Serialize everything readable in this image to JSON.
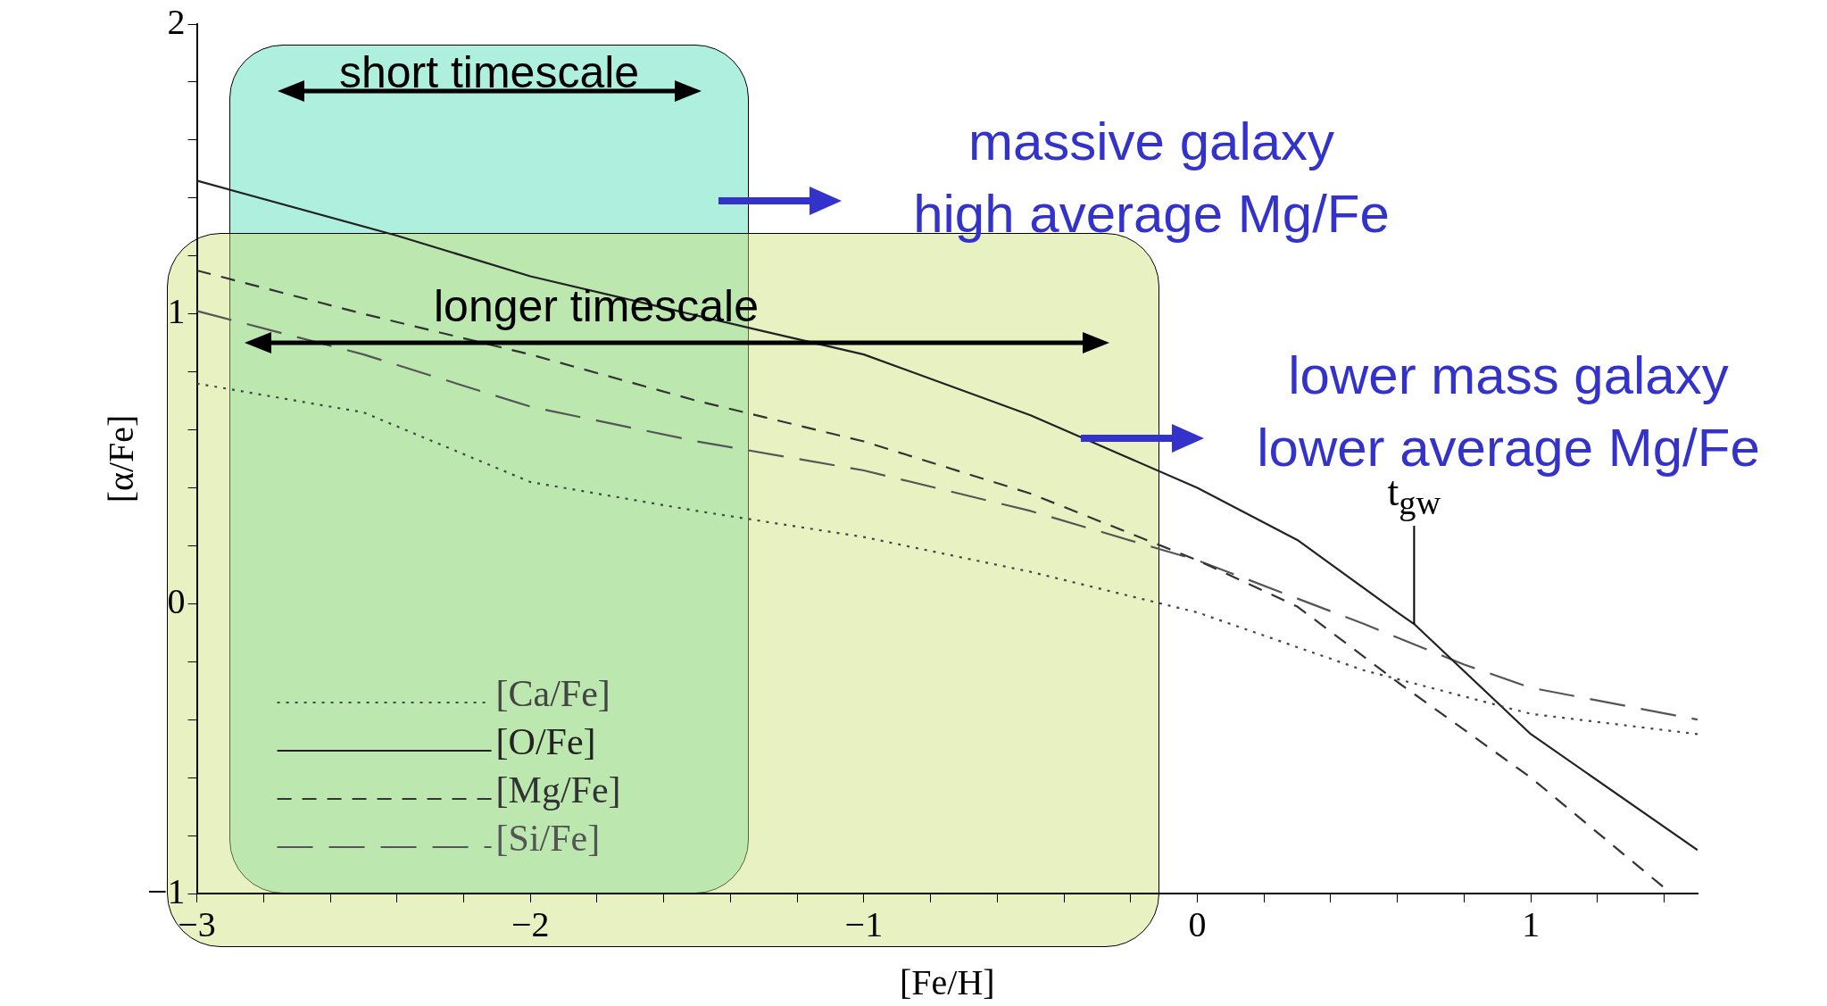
{
  "chart_data": {
    "type": "line",
    "xlabel": "[Fe/H]",
    "ylabel": "[α/Fe]",
    "xlim": [
      -3,
      1.5
    ],
    "ylim": [
      -1,
      2
    ],
    "xticks": [
      -3,
      {
        "value": -2.8,
        "label": null
      },
      {
        "value": -2.6,
        "label": null
      },
      {
        "value": -2.4,
        "label": null
      },
      {
        "value": -2.2,
        "label": null
      },
      -2,
      {
        "value": -1.8,
        "label": null
      },
      {
        "value": -1.6,
        "label": null
      },
      {
        "value": -1.4,
        "label": null
      },
      {
        "value": -1.2,
        "label": null
      },
      -1,
      {
        "value": -0.8,
        "label": null
      },
      {
        "value": -0.6,
        "label": null
      },
      {
        "value": -0.4,
        "label": null
      },
      {
        "value": -0.2,
        "label": null
      },
      0,
      {
        "value": 0.2,
        "label": null
      },
      {
        "value": 0.4,
        "label": null
      },
      {
        "value": 0.6,
        "label": null
      },
      {
        "value": 0.8,
        "label": null
      },
      1,
      {
        "value": 1.2,
        "label": null
      },
      {
        "value": 1.4,
        "label": null
      }
    ],
    "yticks": [
      -1,
      {
        "value": -0.8,
        "label": null
      },
      {
        "value": -0.6,
        "label": null
      },
      {
        "value": -0.4,
        "label": null
      },
      {
        "value": -0.2,
        "label": null
      },
      0,
      {
        "value": 0.2,
        "label": null
      },
      {
        "value": 0.4,
        "label": null
      },
      {
        "value": 0.6,
        "label": null
      },
      {
        "value": 0.8,
        "label": null
      },
      1,
      {
        "value": 1.2,
        "label": null
      },
      {
        "value": 1.4,
        "label": null
      },
      {
        "value": 1.6,
        "label": null
      },
      {
        "value": 1.8,
        "label": null
      },
      2
    ],
    "grid": false,
    "legend": "bottom left",
    "marker": "none",
    "series": [
      {
        "name": "[Ca/Fe]",
        "color": "#444444",
        "line_style": "dotted",
        "x": [
          -3,
          -2.5,
          -2,
          -1.5,
          -1,
          -0.5,
          0,
          0.5,
          1,
          1.5
        ],
        "values": [
          0.76,
          0.66,
          0.42,
          0.32,
          0.23,
          0.11,
          -0.03,
          -0.23,
          -0.38,
          -0.45
        ]
      },
      {
        "name": "[O/Fe]",
        "color": "#222222",
        "line_style": "solid",
        "x": [
          -3,
          -2.4,
          -2,
          -1.3,
          -1,
          -0.5,
          0,
          0.3,
          0.6,
          0.65,
          1,
          1.5
        ],
        "values": [
          1.46,
          1.27,
          1.13,
          0.94,
          0.86,
          0.65,
          0.4,
          0.22,
          -0.03,
          -0.07,
          -0.45,
          -0.85
        ]
      },
      {
        "name": "[Mg/Fe]",
        "color": "#333333",
        "line_style": "dashed",
        "x": [
          -3,
          -2.5,
          -2,
          -1.5,
          -1,
          -0.5,
          0,
          0.3,
          0.6,
          1,
          1.4
        ],
        "values": [
          1.15,
          1.0,
          0.86,
          0.7,
          0.56,
          0.38,
          0.15,
          -0.01,
          -0.27,
          -0.6,
          -0.98
        ]
      },
      {
        "name": "[Si/Fe]",
        "color": "#555555",
        "line_style": "dashed",
        "x": [
          -3,
          -2.5,
          -2,
          -1.5,
          -1,
          -0.5,
          0,
          0.5,
          0.8,
          1,
          1.5
        ],
        "values": [
          1.01,
          0.86,
          0.68,
          0.56,
          0.46,
          0.32,
          0.15,
          -0.07,
          -0.21,
          -0.29,
          -0.4
        ]
      }
    ],
    "annotations": [
      "short timescale",
      "longer timescale",
      "massive galaxy\nhigh average Mg/Fe",
      "lower mass galaxy\nlower average Mg/Fe",
      {
        "text": "t$_{gw}$",
        "x": 0.65,
        "y": -0.07
      }
    ]
  }
}
